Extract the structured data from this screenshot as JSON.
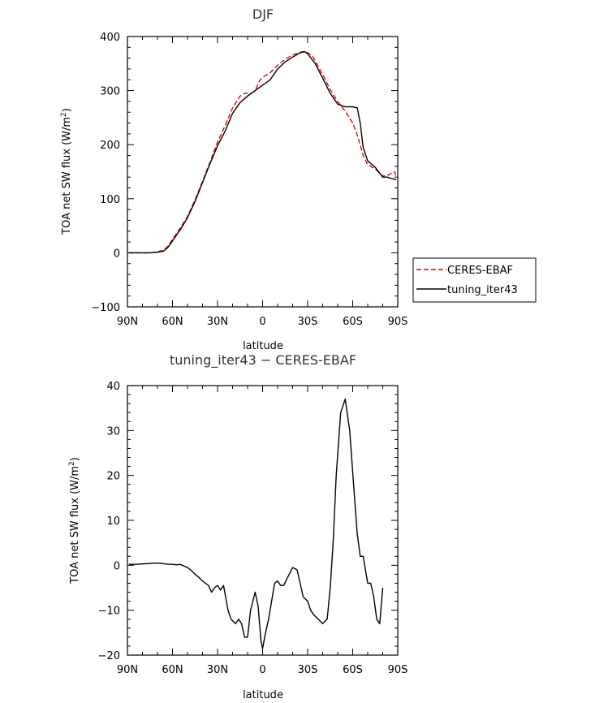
{
  "chart_data": [
    {
      "type": "line",
      "title": "DJF",
      "xlabel": "latitude",
      "ylabel": "TOA net SW flux (W/m²)",
      "xlim": [
        90,
        -90
      ],
      "ylim": [
        -100,
        400
      ],
      "x_ticks": [
        90,
        60,
        30,
        0,
        -30,
        -60,
        -90
      ],
      "x_tick_labels": [
        "90N",
        "60N",
        "30N",
        "0",
        "30S",
        "60S",
        "90S"
      ],
      "y_ticks": [
        -100,
        0,
        100,
        200,
        300,
        400
      ],
      "y_tick_labels": [
        "−100",
        "0",
        "100",
        "200",
        "300",
        "400"
      ],
      "legend": [
        "CERES-EBAF",
        "tuning_iter43"
      ],
      "series": [
        {
          "name": "CERES-EBAF",
          "color": "#e8000b",
          "dash": "dashed",
          "x": [
            89,
            85,
            80,
            75,
            70,
            66,
            63,
            60,
            55,
            50,
            45,
            40,
            35,
            30,
            25,
            20,
            15,
            12,
            10,
            7,
            5,
            2,
            0,
            -2,
            -5,
            -10,
            -15,
            -20,
            -25,
            -27,
            -30,
            -33,
            -35,
            -40,
            -45,
            -50,
            -55,
            -60,
            -63,
            -67,
            -70,
            -75,
            -80,
            -83,
            -85,
            -88,
            -89
          ],
          "values": [
            0,
            0,
            0,
            0,
            2,
            5,
            12,
            25,
            45,
            67,
            98,
            132,
            168,
            205,
            235,
            268,
            290,
            295,
            295,
            296,
            300,
            318,
            325,
            328,
            333,
            347,
            358,
            366,
            371,
            372,
            370,
            365,
            355,
            330,
            302,
            280,
            262,
            240,
            218,
            180,
            163,
            155,
            142,
            143,
            146,
            150,
            140
          ]
        },
        {
          "name": "tuning_iter43",
          "color": "#000000",
          "dash": "solid",
          "x": [
            89,
            85,
            80,
            75,
            70,
            66,
            63,
            60,
            55,
            50,
            45,
            40,
            35,
            30,
            25,
            20,
            15,
            10,
            5,
            0,
            -5,
            -10,
            -15,
            -20,
            -25,
            -28,
            -30,
            -35,
            -40,
            -45,
            -50,
            -55,
            -60,
            -63,
            -65,
            -67,
            -70,
            -75,
            -80,
            -83,
            -85,
            -88,
            -89
          ],
          "values": [
            0,
            0,
            0,
            0,
            1,
            3,
            10,
            22,
            42,
            65,
            95,
            130,
            165,
            198,
            225,
            258,
            278,
            290,
            300,
            310,
            320,
            340,
            353,
            362,
            370,
            372,
            368,
            350,
            323,
            295,
            275,
            270,
            270,
            268,
            240,
            195,
            170,
            158,
            140,
            140,
            138,
            136,
            135
          ]
        }
      ]
    },
    {
      "type": "line",
      "title": "tuning_iter43 − CERES-EBAF",
      "xlabel": "latitude",
      "ylabel": "TOA net SW flux (W/m²)",
      "xlim": [
        90,
        -90
      ],
      "ylim": [
        -20,
        40
      ],
      "x_ticks": [
        90,
        60,
        30,
        0,
        -30,
        -60,
        -90
      ],
      "x_tick_labels": [
        "90N",
        "60N",
        "30N",
        "0",
        "30S",
        "60S",
        "90S"
      ],
      "y_ticks": [
        -20,
        -10,
        0,
        10,
        20,
        30,
        40
      ],
      "y_tick_labels": [
        "−20",
        "−10",
        "0",
        "10",
        "20",
        "30",
        "40"
      ],
      "series": [
        {
          "name": "tuning_iter43 − CERES-EBAF",
          "color": "#000000",
          "dash": "solid",
          "x": [
            89,
            85,
            80,
            75,
            70,
            67,
            65,
            62,
            60,
            57,
            55,
            50,
            48,
            45,
            43,
            40,
            38,
            36,
            34,
            32,
            30,
            28,
            26,
            23,
            21,
            18,
            16,
            14,
            12,
            10,
            8,
            5,
            3,
            1,
            0,
            -2,
            -4,
            -6,
            -8,
            -10,
            -12,
            -14,
            -17,
            -20,
            -23,
            -25,
            -27,
            -30,
            -32,
            -34,
            -37,
            -40,
            -43,
            -45,
            -47,
            -49,
            -52,
            -55,
            -58,
            -61,
            -63,
            -65,
            -67,
            -70,
            -72,
            -74,
            -76,
            -78,
            -80,
            -82,
            -84,
            -86,
            -87,
            -88,
            -89
          ],
          "values": [
            0.2,
            0.2,
            0.3,
            0.4,
            0.5,
            0.4,
            0.3,
            0.2,
            0.2,
            0.1,
            0.2,
            -0.5,
            -1,
            -2,
            -2.5,
            -3.5,
            -4,
            -4.5,
            -6,
            -5,
            -4.5,
            -5.5,
            -4.5,
            -10,
            -12,
            -13,
            -12,
            -13,
            -16,
            -16,
            -10,
            -6,
            -9,
            -17,
            -18.5,
            -15,
            -12,
            -8,
            -4,
            -3.5,
            -4.5,
            -4.5,
            -2.5,
            -0.5,
            -1,
            -4,
            -7,
            -8,
            -10,
            -11,
            -12,
            -13,
            -12,
            -5,
            5,
            20,
            34,
            37,
            30,
            16,
            7,
            2,
            2,
            -4,
            -4,
            -7,
            -12,
            -13,
            -5,
            null,
            null,
            null,
            null,
            null,
            null
          ],
          "note": "values paired with x in order; trailing entries unused"
        }
      ]
    }
  ]
}
